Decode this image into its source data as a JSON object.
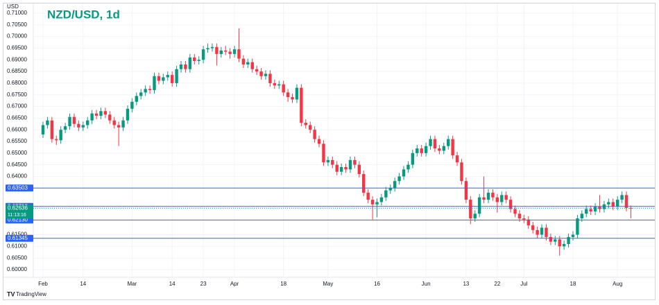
{
  "chart_data": {
    "type": "candlestick",
    "title": "NZD/USD, 1d",
    "y_label": "USD",
    "brand": "TradingView",
    "up_color": "#089981",
    "down_color": "#f23645",
    "line_color": "#2962ff",
    "grid": true,
    "ylim": [
      0.5985,
      0.7115
    ],
    "yticks": [
      {
        "value": 0.71,
        "label": "0.71000"
      },
      {
        "value": 0.705,
        "label": "0.70500"
      },
      {
        "value": 0.7,
        "label": "0.70000"
      },
      {
        "value": 0.695,
        "label": "0.69500"
      },
      {
        "value": 0.69,
        "label": "0.69000"
      },
      {
        "value": 0.685,
        "label": "0.68500"
      },
      {
        "value": 0.68,
        "label": "0.68000"
      },
      {
        "value": 0.675,
        "label": "0.67500"
      },
      {
        "value": 0.67,
        "label": "0.67000"
      },
      {
        "value": 0.665,
        "label": "0.66500"
      },
      {
        "value": 0.66,
        "label": "0.66000"
      },
      {
        "value": 0.655,
        "label": "0.65500"
      },
      {
        "value": 0.65,
        "label": "0.65000"
      },
      {
        "value": 0.645,
        "label": "0.64500"
      },
      {
        "value": 0.64,
        "label": "0.64000"
      },
      {
        "value": 0.615,
        "label": "0.61500"
      },
      {
        "value": 0.61,
        "label": "0.61000"
      },
      {
        "value": 0.605,
        "label": "0.60500"
      },
      {
        "value": 0.6,
        "label": "0.60000"
      }
    ],
    "hlines": [
      0.63503,
      0.62712,
      {
        "value": 0.6213,
        "label": "0.62130"
      },
      0.61345
    ],
    "last_price": 0.62636,
    "countdown": "11:13:16",
    "categories": [
      "Feb",
      null,
      null,
      null,
      null,
      null,
      null,
      null,
      null,
      "14",
      null,
      null,
      null,
      null,
      null,
      null,
      null,
      null,
      null,
      null,
      "Mar",
      null,
      null,
      null,
      null,
      null,
      null,
      null,
      null,
      "14",
      null,
      null,
      null,
      null,
      null,
      null,
      "23",
      null,
      null,
      null,
      null,
      null,
      null,
      "Apr",
      null,
      null,
      null,
      null,
      null,
      null,
      null,
      null,
      null,
      null,
      "18",
      null,
      null,
      null,
      null,
      null,
      null,
      null,
      null,
      null,
      "May",
      null,
      null,
      null,
      null,
      null,
      null,
      null,
      null,
      null,
      null,
      "16",
      null,
      null,
      null,
      null,
      null,
      null,
      null,
      null,
      null,
      null,
      "Jun",
      null,
      null,
      null,
      null,
      null,
      null,
      null,
      null,
      "13",
      null,
      null,
      null,
      null,
      null,
      null,
      "22",
      null,
      null,
      null,
      null,
      null,
      "Jul",
      null,
      null,
      null,
      null,
      null,
      null,
      null,
      null,
      null,
      null,
      "18",
      null,
      null,
      null,
      null,
      null,
      null,
      null,
      null,
      null,
      "Aug",
      null,
      null,
      null
    ],
    "open": [
      0.658,
      0.662,
      0.664,
      0.656,
      0.6555,
      0.66,
      0.6615,
      0.6655,
      0.6625,
      0.661,
      0.662,
      0.664,
      0.667,
      0.666,
      0.668,
      0.6665,
      0.664,
      0.662,
      0.661,
      0.664,
      0.669,
      0.672,
      0.6745,
      0.676,
      0.6775,
      0.677,
      0.683,
      0.681,
      0.6825,
      0.6835,
      0.68,
      0.686,
      0.688,
      0.686,
      0.691,
      0.6895,
      0.69,
      0.6945,
      0.695,
      0.6955,
      0.6925,
      0.694,
      0.6935,
      0.6925,
      0.6945,
      0.6905,
      0.688,
      0.689,
      0.686,
      0.685,
      0.683,
      0.684,
      0.68,
      0.679,
      0.6795,
      0.676,
      0.674,
      0.673,
      0.678,
      0.663,
      0.662,
      0.66,
      0.656,
      0.654,
      0.646,
      0.647,
      0.645,
      0.642,
      0.644,
      0.643,
      0.647,
      0.645,
      0.641,
      0.633,
      0.63,
      0.628,
      0.629,
      0.631,
      0.634,
      0.635,
      0.638,
      0.64,
      0.643,
      0.645,
      0.65,
      0.652,
      0.65,
      0.653,
      0.656,
      0.652,
      0.651,
      0.653,
      0.656,
      0.649,
      0.646,
      0.638,
      0.63,
      0.622,
      0.624,
      0.631,
      0.63,
      0.633,
      0.631,
      0.629,
      0.632,
      0.63,
      0.626,
      0.624,
      0.622,
      0.6215,
      0.619,
      0.617,
      0.615,
      0.618,
      0.614,
      0.612,
      0.613,
      0.61,
      0.611,
      0.614,
      0.615,
      0.622,
      0.624,
      0.626,
      0.625,
      0.627,
      0.626,
      0.628,
      0.629,
      0.627,
      0.63,
      0.632,
      0.6265
    ],
    "high": [
      0.6635,
      0.6655,
      0.6655,
      0.6575,
      0.6615,
      0.663,
      0.667,
      0.667,
      0.664,
      0.6635,
      0.6655,
      0.6685,
      0.6685,
      0.6695,
      0.6695,
      0.668,
      0.6655,
      0.6635,
      0.6655,
      0.6705,
      0.6735,
      0.676,
      0.6775,
      0.679,
      0.679,
      0.6845,
      0.6845,
      0.684,
      0.685,
      0.685,
      0.6875,
      0.6895,
      0.6895,
      0.6925,
      0.6925,
      0.6915,
      0.696,
      0.697,
      0.697,
      0.697,
      0.6955,
      0.696,
      0.695,
      0.696,
      0.7035,
      0.692,
      0.6905,
      0.6905,
      0.6875,
      0.6865,
      0.6855,
      0.6855,
      0.6815,
      0.681,
      0.681,
      0.6775,
      0.6755,
      0.6795,
      0.6795,
      0.6645,
      0.6635,
      0.6615,
      0.6575,
      0.6555,
      0.6485,
      0.6485,
      0.6465,
      0.6455,
      0.6455,
      0.6485,
      0.6485,
      0.6465,
      0.6425,
      0.6345,
      0.6315,
      0.6305,
      0.6325,
      0.6355,
      0.6365,
      0.6395,
      0.6415,
      0.6445,
      0.6465,
      0.6515,
      0.6535,
      0.6535,
      0.6545,
      0.6575,
      0.6575,
      0.6535,
      0.6545,
      0.6575,
      0.6575,
      0.6505,
      0.6475,
      0.6395,
      0.6315,
      0.6255,
      0.6325,
      0.64,
      0.6345,
      0.6345,
      0.6325,
      0.6335,
      0.6335,
      0.6315,
      0.6275,
      0.6255,
      0.6235,
      0.623,
      0.6205,
      0.6185,
      0.6195,
      0.6195,
      0.6155,
      0.6145,
      0.6145,
      0.6125,
      0.6155,
      0.6165,
      0.6235,
      0.6255,
      0.6275,
      0.6275,
      0.6285,
      0.632,
      0.6295,
      0.6305,
      0.6305,
      0.6315,
      0.6335,
      0.6335,
      0.6275
    ],
    "low": [
      0.6565,
      0.6605,
      0.6545,
      0.6535,
      0.654,
      0.6585,
      0.66,
      0.661,
      0.6595,
      0.6595,
      0.6605,
      0.6625,
      0.6645,
      0.6645,
      0.665,
      0.6625,
      0.6605,
      0.653,
      0.6595,
      0.6625,
      0.6675,
      0.6705,
      0.673,
      0.6745,
      0.6755,
      0.6755,
      0.6795,
      0.6795,
      0.681,
      0.6785,
      0.6785,
      0.6845,
      0.6845,
      0.6845,
      0.688,
      0.688,
      0.6885,
      0.693,
      0.6935,
      0.6875,
      0.691,
      0.692,
      0.6905,
      0.691,
      0.689,
      0.6865,
      0.6865,
      0.6845,
      0.6835,
      0.6815,
      0.6815,
      0.6785,
      0.6775,
      0.6775,
      0.6745,
      0.672,
      0.6715,
      0.6715,
      0.6615,
      0.6605,
      0.6585,
      0.6545,
      0.6525,
      0.6445,
      0.6445,
      0.6435,
      0.6405,
      0.6405,
      0.6415,
      0.6415,
      0.6435,
      0.6395,
      0.6315,
      0.6285,
      0.6215,
      0.6225,
      0.6275,
      0.6295,
      0.6325,
      0.6335,
      0.6365,
      0.6385,
      0.6415,
      0.6435,
      0.6485,
      0.6485,
      0.6485,
      0.6515,
      0.6505,
      0.6495,
      0.6495,
      0.6515,
      0.6475,
      0.6445,
      0.6365,
      0.6285,
      0.6195,
      0.6205,
      0.6225,
      0.6285,
      0.6285,
      0.6295,
      0.6245,
      0.6275,
      0.6285,
      0.6245,
      0.6225,
      0.6205,
      0.62,
      0.6175,
      0.6155,
      0.6135,
      0.6135,
      0.6125,
      0.6105,
      0.6105,
      0.606,
      0.6085,
      0.6095,
      0.6125,
      0.6135,
      0.6205,
      0.6225,
      0.6235,
      0.6235,
      0.6245,
      0.6245,
      0.6265,
      0.6255,
      0.6255,
      0.6285,
      0.625,
      0.622
    ],
    "close": [
      0.662,
      0.664,
      0.656,
      0.6555,
      0.66,
      0.6615,
      0.6655,
      0.6625,
      0.661,
      0.662,
      0.664,
      0.667,
      0.666,
      0.668,
      0.6665,
      0.664,
      0.662,
      0.661,
      0.664,
      0.669,
      0.672,
      0.6745,
      0.676,
      0.6775,
      0.677,
      0.683,
      0.681,
      0.6825,
      0.6835,
      0.68,
      0.686,
      0.688,
      0.686,
      0.691,
      0.6895,
      0.69,
      0.6945,
      0.695,
      0.6955,
      0.6925,
      0.694,
      0.6935,
      0.6925,
      0.6945,
      0.6905,
      0.688,
      0.689,
      0.686,
      0.685,
      0.683,
      0.684,
      0.68,
      0.679,
      0.6795,
      0.676,
      0.674,
      0.673,
      0.678,
      0.663,
      0.662,
      0.66,
      0.656,
      0.654,
      0.646,
      0.647,
      0.645,
      0.642,
      0.644,
      0.643,
      0.647,
      0.645,
      0.641,
      0.633,
      0.63,
      0.628,
      0.629,
      0.631,
      0.634,
      0.635,
      0.638,
      0.64,
      0.643,
      0.645,
      0.65,
      0.652,
      0.65,
      0.653,
      0.656,
      0.652,
      0.651,
      0.653,
      0.656,
      0.649,
      0.646,
      0.638,
      0.63,
      0.622,
      0.624,
      0.631,
      0.63,
      0.633,
      0.631,
      0.629,
      0.632,
      0.63,
      0.626,
      0.624,
      0.622,
      0.6215,
      0.619,
      0.617,
      0.615,
      0.618,
      0.614,
      0.612,
      0.613,
      0.61,
      0.611,
      0.614,
      0.615,
      0.622,
      0.624,
      0.626,
      0.625,
      0.627,
      0.626,
      0.628,
      0.629,
      0.627,
      0.63,
      0.632,
      0.6265,
      0.62636
    ]
  }
}
